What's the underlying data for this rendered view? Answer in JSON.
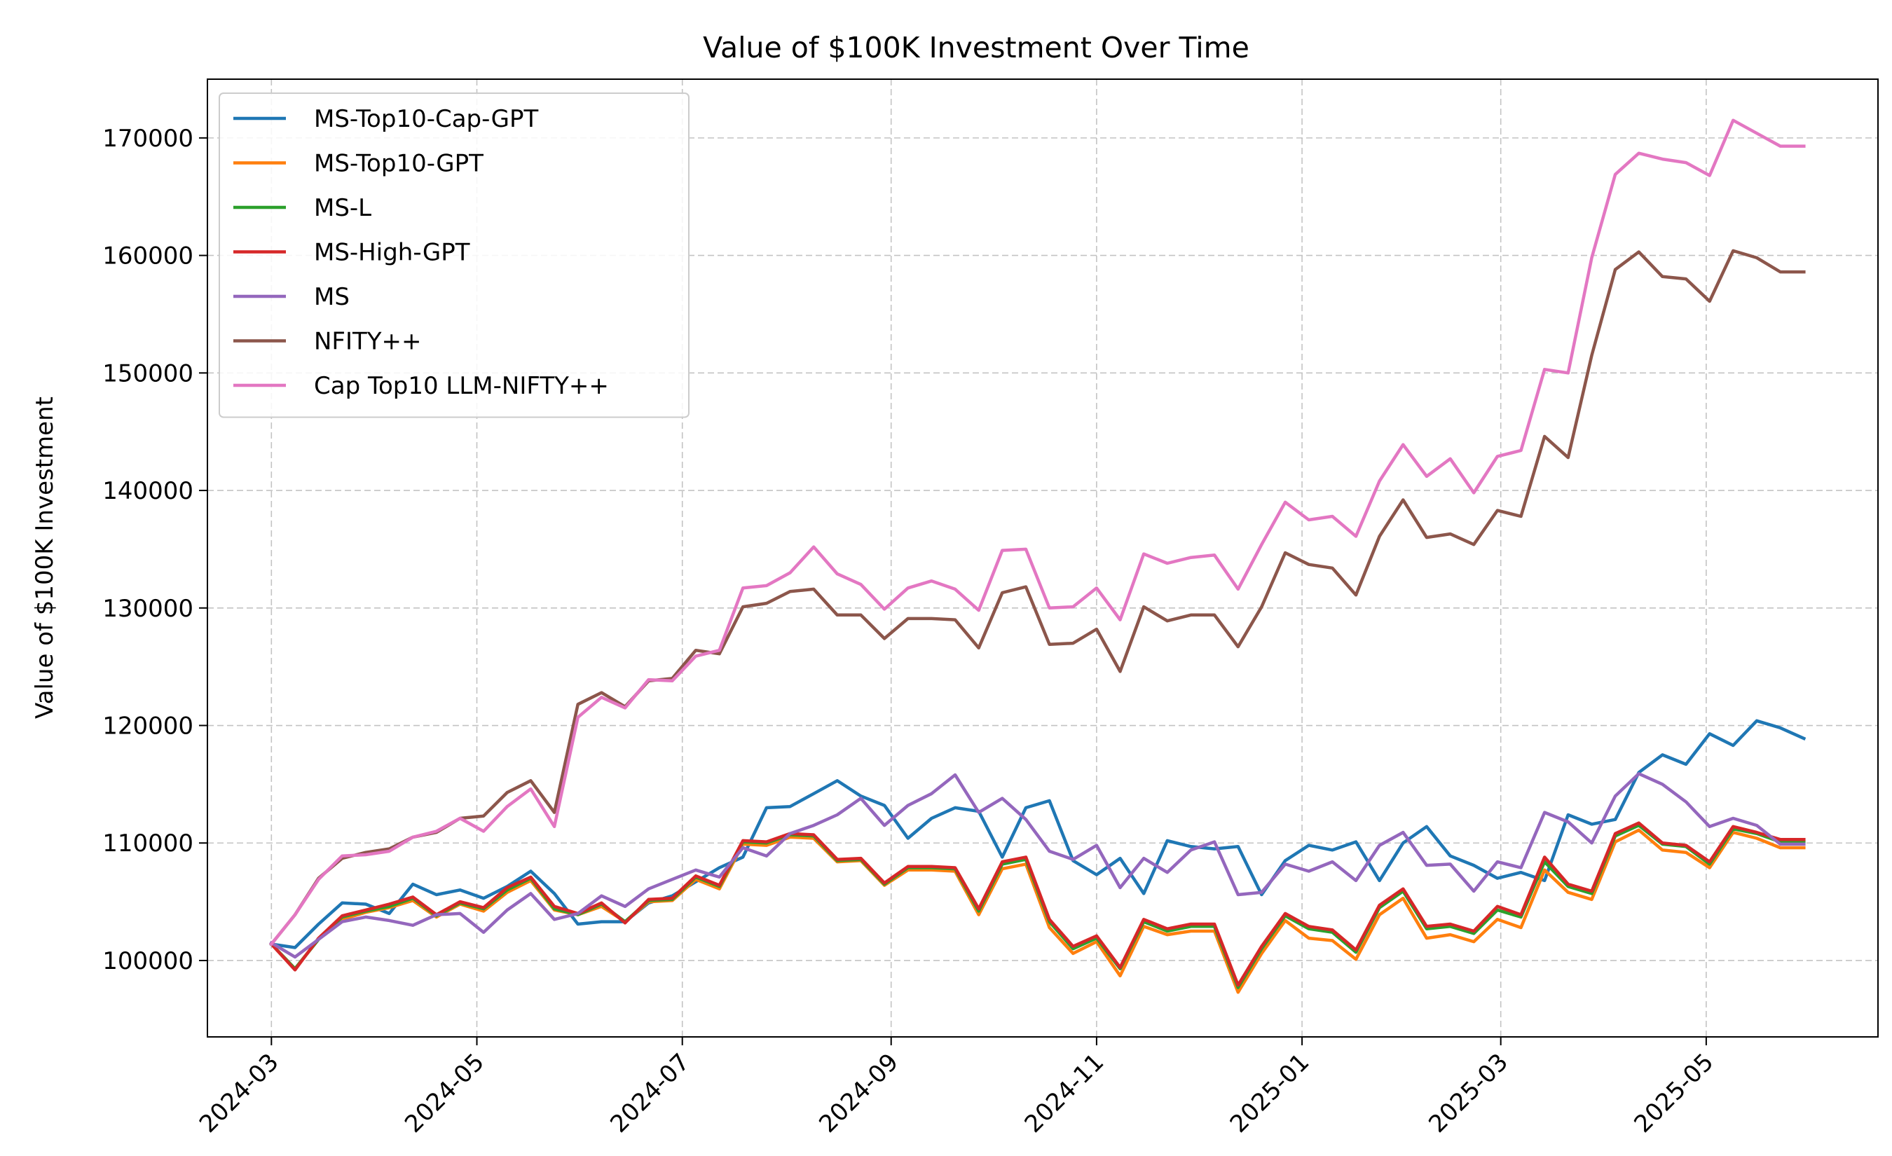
{
  "chart_data": {
    "type": "line",
    "title": "Value of $100K Investment Over Time",
    "xlabel": "",
    "ylabel": "Value of $100K Investment",
    "x_ticks": [
      "2024-03",
      "2024-05",
      "2024-07",
      "2024-09",
      "2024-11",
      "2025-01",
      "2025-03",
      "2025-05"
    ],
    "y_ticks": [
      100000,
      110000,
      120000,
      130000,
      140000,
      150000,
      160000,
      170000
    ],
    "ylim": [
      93500,
      175000
    ],
    "xlim": [
      "2024-02-11",
      "2025-06-21"
    ],
    "grid": true,
    "legend_position": "upper left",
    "x": [
      "2024-03-01",
      "2024-03-08",
      "2024-03-15",
      "2024-03-22",
      "2024-03-29",
      "2024-04-05",
      "2024-04-12",
      "2024-04-19",
      "2024-04-26",
      "2024-05-03",
      "2024-05-10",
      "2024-05-17",
      "2024-05-24",
      "2024-05-31",
      "2024-06-07",
      "2024-06-14",
      "2024-06-21",
      "2024-06-28",
      "2024-07-05",
      "2024-07-12",
      "2024-07-19",
      "2024-07-26",
      "2024-08-02",
      "2024-08-09",
      "2024-08-16",
      "2024-08-23",
      "2024-08-30",
      "2024-09-06",
      "2024-09-13",
      "2024-09-20",
      "2024-09-27",
      "2024-10-04",
      "2024-10-11",
      "2024-10-18",
      "2024-10-25",
      "2024-11-01",
      "2024-11-08",
      "2024-11-15",
      "2024-11-22",
      "2024-11-29",
      "2024-12-06",
      "2024-12-13",
      "2024-12-20",
      "2024-12-27",
      "2025-01-03",
      "2025-01-10",
      "2025-01-17",
      "2025-01-24",
      "2025-01-31",
      "2025-02-07",
      "2025-02-14",
      "2025-02-21",
      "2025-02-28",
      "2025-03-07",
      "2025-03-14",
      "2025-03-21",
      "2025-03-28",
      "2025-04-04",
      "2025-04-11",
      "2025-04-18",
      "2025-04-25",
      "2025-05-02",
      "2025-05-09",
      "2025-05-16",
      "2025-05-23",
      "2025-05-30"
    ],
    "series": [
      {
        "name": "MS-Top10-Cap-GPT",
        "color": "#1f77b4",
        "values": [
          101400,
          101100,
          103100,
          104900,
          104800,
          104000,
          106500,
          105600,
          106000,
          105300,
          106300,
          107600,
          105700,
          103100,
          103300,
          103300,
          104900,
          105500,
          106700,
          107900,
          108800,
          113000,
          113100,
          114200,
          115300,
          114000,
          113200,
          110400,
          112100,
          113000,
          112700,
          108800,
          113000,
          113600,
          108500,
          107300,
          108700,
          105700,
          110200,
          109700,
          109500,
          109700,
          105600,
          108500,
          109800,
          109400,
          110100,
          106800,
          110000,
          111400,
          108900,
          108100,
          107000,
          107500,
          106800,
          112400,
          111600,
          112000,
          116000,
          117500,
          116700,
          119300,
          118300,
          120400,
          119800,
          118900
        ]
      },
      {
        "name": "MS-Top10-GPT",
        "color": "#ff7f0e",
        "values": [
          101400,
          99300,
          101800,
          103500,
          104100,
          104500,
          105100,
          103700,
          104800,
          104200,
          105800,
          106800,
          104300,
          103900,
          104600,
          103300,
          105000,
          105100,
          106900,
          106100,
          109900,
          109800,
          110500,
          110400,
          108400,
          108500,
          106400,
          107700,
          107700,
          107600,
          103900,
          107800,
          108200,
          102800,
          100600,
          101600,
          98700,
          102900,
          102200,
          102500,
          102500,
          97300,
          100600,
          103400,
          101900,
          101700,
          100100,
          103900,
          105300,
          101900,
          102200,
          101600,
          103500,
          102800,
          107700,
          105800,
          105200,
          110100,
          111100,
          109400,
          109200,
          107900,
          110900,
          110400,
          109600,
          109600
        ]
      },
      {
        "name": "MS-L",
        "color": "#2ca02c",
        "values": [
          101400,
          99300,
          101800,
          103700,
          104200,
          104600,
          105300,
          103800,
          104900,
          104400,
          106000,
          107000,
          104400,
          103900,
          104800,
          103300,
          105100,
          105200,
          107100,
          106300,
          110100,
          110000,
          110700,
          110600,
          108500,
          108600,
          106500,
          107900,
          107900,
          107800,
          104200,
          108200,
          108600,
          103300,
          101000,
          101900,
          99300,
          103300,
          102500,
          102900,
          102900,
          97700,
          101000,
          103800,
          102700,
          102400,
          100700,
          104500,
          105900,
          102700,
          102900,
          102300,
          104300,
          103700,
          108400,
          106300,
          105700,
          110600,
          111500,
          109900,
          109700,
          108200,
          111200,
          110800,
          110100,
          110100
        ]
      },
      {
        "name": "MS-High-GPT",
        "color": "#d62728",
        "values": [
          101400,
          99200,
          101900,
          103800,
          104300,
          104800,
          105400,
          103900,
          105000,
          104500,
          106200,
          107100,
          104600,
          104000,
          104900,
          103200,
          105200,
          105300,
          107200,
          106400,
          110200,
          110100,
          110800,
          110700,
          108600,
          108700,
          106600,
          108000,
          108000,
          107900,
          104400,
          108400,
          108800,
          103500,
          101200,
          102100,
          99400,
          103500,
          102700,
          103100,
          103100,
          97900,
          101200,
          104000,
          102900,
          102600,
          100900,
          104700,
          106100,
          102900,
          103100,
          102500,
          104600,
          103900,
          108800,
          106500,
          105900,
          110800,
          111700,
          110000,
          109800,
          108400,
          111400,
          110900,
          110300,
          110300
        ]
      },
      {
        "name": "MS",
        "color": "#9467bd",
        "values": [
          101500,
          100300,
          101800,
          103300,
          103700,
          103400,
          103000,
          103900,
          104000,
          102400,
          104300,
          105700,
          103500,
          104000,
          105500,
          104600,
          106100,
          106900,
          107700,
          107100,
          109600,
          108900,
          110800,
          111500,
          112400,
          113800,
          111500,
          113200,
          114200,
          115800,
          112600,
          113800,
          112000,
          109300,
          108600,
          109800,
          106200,
          108700,
          107500,
          109400,
          110100,
          105600,
          105800,
          108200,
          107600,
          108400,
          106800,
          109800,
          110900,
          108100,
          108200,
          105900,
          108400,
          107900,
          112600,
          111800,
          110000,
          114000,
          115900,
          115000,
          113500,
          111400,
          112100,
          111500,
          109900,
          109900
        ]
      },
      {
        "name": "NFITY++",
        "color": "#8c564b",
        "values": [
          101400,
          103900,
          107000,
          108700,
          109200,
          109500,
          110500,
          110900,
          112100,
          112300,
          114300,
          115300,
          112600,
          121800,
          122800,
          121600,
          123800,
          124000,
          126400,
          126100,
          130100,
          130400,
          131400,
          131600,
          129400,
          129400,
          127400,
          129100,
          129100,
          129000,
          126600,
          131300,
          131800,
          126900,
          127000,
          128200,
          124600,
          130100,
          128900,
          129400,
          129400,
          126700,
          130100,
          134700,
          133700,
          133400,
          131100,
          136100,
          139200,
          136000,
          136300,
          135400,
          138300,
          137800,
          144600,
          142800,
          151500,
          158800,
          160300,
          158200,
          158000,
          156100,
          160400,
          159800,
          158600,
          158600
        ]
      },
      {
        "name": "Cap Top10 LLM-NIFTY++",
        "color": "#e377c2",
        "values": [
          101400,
          103900,
          106900,
          108900,
          109000,
          109300,
          110500,
          111000,
          112100,
          111000,
          113100,
          114600,
          111400,
          120700,
          122400,
          121500,
          123900,
          123800,
          125900,
          126400,
          131700,
          131900,
          133000,
          135200,
          132900,
          132000,
          129900,
          131700,
          132300,
          131600,
          129800,
          134900,
          135000,
          130000,
          130100,
          131700,
          129000,
          134600,
          133800,
          134300,
          134500,
          131600,
          135400,
          139000,
          137500,
          137800,
          136100,
          140800,
          143900,
          141200,
          142700,
          139800,
          142900,
          143400,
          150300,
          150000,
          159800,
          166900,
          168700,
          168200,
          167900,
          166800,
          171500,
          170400,
          169300,
          169300
        ]
      }
    ]
  }
}
